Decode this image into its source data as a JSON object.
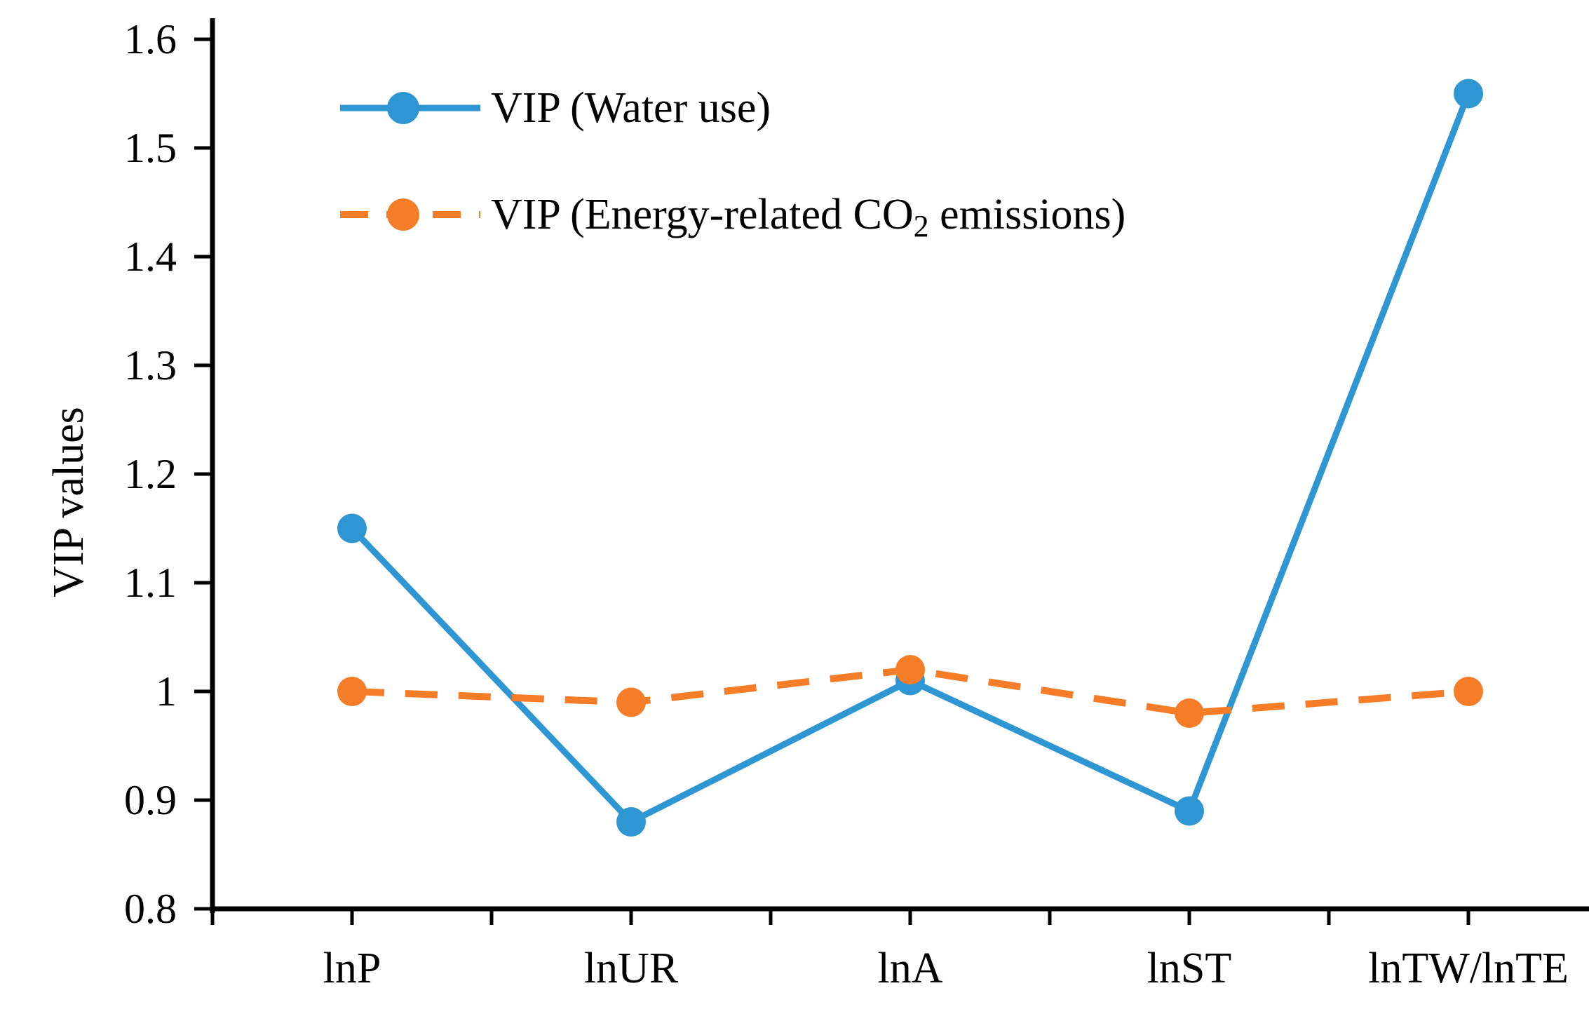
{
  "figure": {
    "background": "#ffffff"
  },
  "chart_data": {
    "type": "line",
    "title": "",
    "xlabel": "",
    "ylabel": "VIP values",
    "categories": [
      "lnP",
      "lnUR",
      "lnA",
      "lnST",
      "lnTW/lnTE"
    ],
    "series": [
      {
        "name": "VIP (Water use)",
        "color": "#2E97D3",
        "line_style": "solid",
        "marker": "circle",
        "values": [
          1.15,
          0.88,
          1.01,
          0.89,
          1.55
        ]
      },
      {
        "name": "VIP (Energy-related CO2 emissions)",
        "name_rich": {
          "prefix": "VIP (Energy-related CO",
          "subscript": "2",
          "suffix": " emissions)"
        },
        "color": "#F57D28",
        "line_style": "dashed",
        "marker": "circle",
        "values": [
          1.0,
          0.99,
          1.02,
          0.98,
          1.0
        ]
      }
    ],
    "ylim": [
      0.8,
      1.6
    ],
    "ytick_labels": [
      "0.8",
      "0.9",
      "1",
      "1.1",
      "1.2",
      "1.3",
      "1.4",
      "1.5",
      "1.6"
    ],
    "grid": false,
    "legend_position": "upper-left",
    "axis_color": "#000000",
    "text_color": "#000000"
  }
}
